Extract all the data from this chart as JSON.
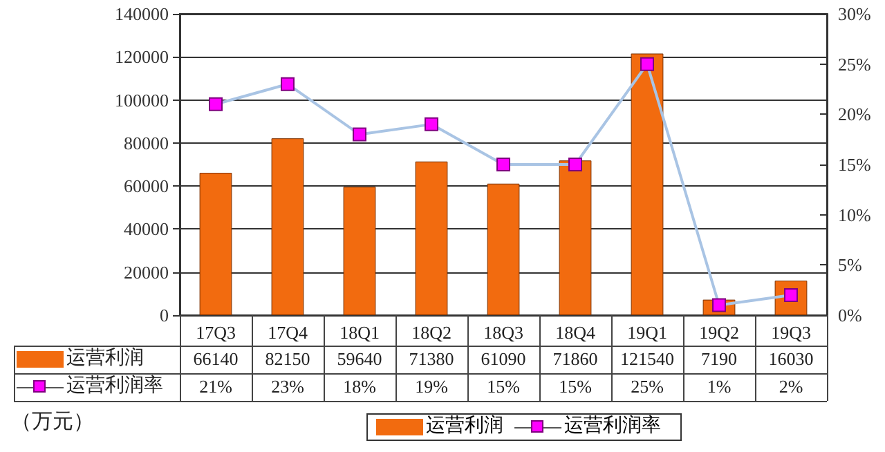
{
  "chart_data": {
    "type": "bar",
    "categories": [
      "17Q3",
      "17Q4",
      "18Q1",
      "18Q2",
      "18Q3",
      "18Q4",
      "19Q1",
      "19Q2",
      "19Q3"
    ],
    "series": [
      {
        "name": "运营利润",
        "color": "#f26b0f",
        "values": [
          66140,
          82150,
          59640,
          71380,
          61090,
          71860,
          121540,
          7190,
          16030
        ],
        "value_labels": [
          "66140",
          "82150",
          "59640",
          "71380",
          "61090",
          "71860",
          "121540",
          "7190",
          "16030"
        ]
      },
      {
        "name": "运营利润率",
        "type": "line",
        "axis": "y2",
        "color": "#ff00ff",
        "values": [
          21,
          23,
          18,
          19,
          15,
          15,
          25,
          1,
          2
        ],
        "value_labels": [
          "21%",
          "23%",
          "18%",
          "19%",
          "15%",
          "15%",
          "25%",
          "1%",
          "2%"
        ]
      }
    ],
    "ylim": [
      0,
      140000
    ],
    "yticks": [
      0,
      20000,
      40000,
      60000,
      80000,
      100000,
      120000,
      140000
    ],
    "y2lim": [
      0,
      30
    ],
    "y2ticks": [
      {
        "value": 0,
        "label": "0%"
      },
      {
        "value": 5,
        "label": "5%"
      },
      {
        "value": 10,
        "label": "10%"
      },
      {
        "value": 15,
        "label": "15%"
      },
      {
        "value": 20,
        "label": "20%"
      },
      {
        "value": 25,
        "label": "25%"
      },
      {
        "value": 30,
        "label": "30%"
      }
    ],
    "annotations": [
      "（万元）"
    ],
    "grid": "y",
    "legend": "bottom",
    "marker": "square"
  }
}
